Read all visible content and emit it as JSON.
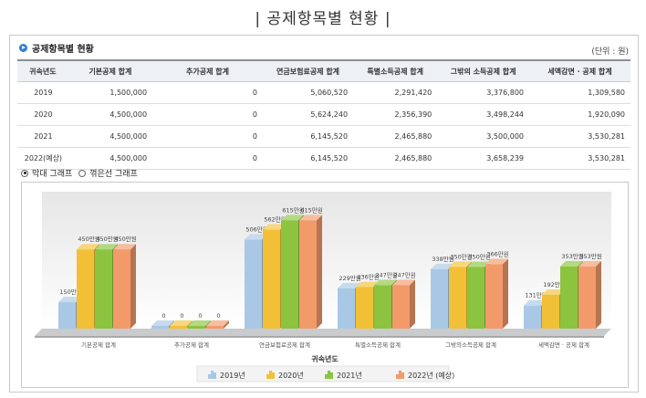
{
  "page_title": "| 공제항목별 현황 |",
  "panel": {
    "title": "공제항목별 현황",
    "unit": "(단위 : 원)"
  },
  "table": {
    "headers": [
      "귀속년도",
      "기본공제 합계",
      "추가공제 합계",
      "연금보험료공제 합계",
      "특별소득공제 합계",
      "그밖의 소득공제 합계",
      "세액감면 · 공제 합계"
    ],
    "rows": [
      [
        "2019",
        "1,500,000",
        "0",
        "5,060,520",
        "2,291,420",
        "3,376,800",
        "1,309,580"
      ],
      [
        "2020",
        "4,500,000",
        "0",
        "5,624,240",
        "2,356,390",
        "3,498,244",
        "1,920,090"
      ],
      [
        "2021",
        "4,500,000",
        "0",
        "6,145,520",
        "2,465,880",
        "3,500,000",
        "3,530,281"
      ],
      [
        "2022(예상)",
        "4,500,000",
        "0",
        "6,145,520",
        "2,465,880",
        "3,658,239",
        "3,530,281"
      ]
    ]
  },
  "graph_toggle": {
    "bar_label": "막대 그래프",
    "line_label": "꺾은선 그래프",
    "selected": "bar"
  },
  "chart_data": {
    "type": "bar",
    "categories": [
      "기본공제 합계",
      "추가공제 합계",
      "연금보험료공제 합계",
      "특별소득공제 합계",
      "그밖의소득공제 합계",
      "세액감면 · 공제 합계"
    ],
    "series": [
      {
        "name": "2019년",
        "values": [
          150,
          0,
          506,
          229,
          338,
          131
        ],
        "labels": [
          "150만원",
          "0",
          "506만원",
          "229만원",
          "338만원",
          "131만원"
        ],
        "color": "#a9c8e6"
      },
      {
        "name": "2020년",
        "values": [
          450,
          0,
          562,
          236,
          350,
          192
        ],
        "labels": [
          "450만원",
          "0",
          "562만원",
          "236만원",
          "350만원",
          "192만원"
        ],
        "color": "#f2c037"
      },
      {
        "name": "2021년",
        "values": [
          450,
          0,
          615,
          247,
          350,
          353
        ],
        "labels": [
          "450만원",
          "0",
          "615만원",
          "247만원",
          "350만원",
          "353만원"
        ],
        "color": "#8cc43f"
      },
      {
        "name": "2022년 (예상)",
        "values": [
          450,
          0,
          615,
          247,
          366,
          353
        ],
        "labels": [
          "450만원",
          "0",
          "615만원",
          "247만원",
          "366만원",
          "353만원"
        ],
        "color": "#f39a6b"
      }
    ],
    "legend_title": "귀속년도",
    "legend_position": "bottom",
    "ylim": [
      0,
      700
    ],
    "grid": false
  }
}
